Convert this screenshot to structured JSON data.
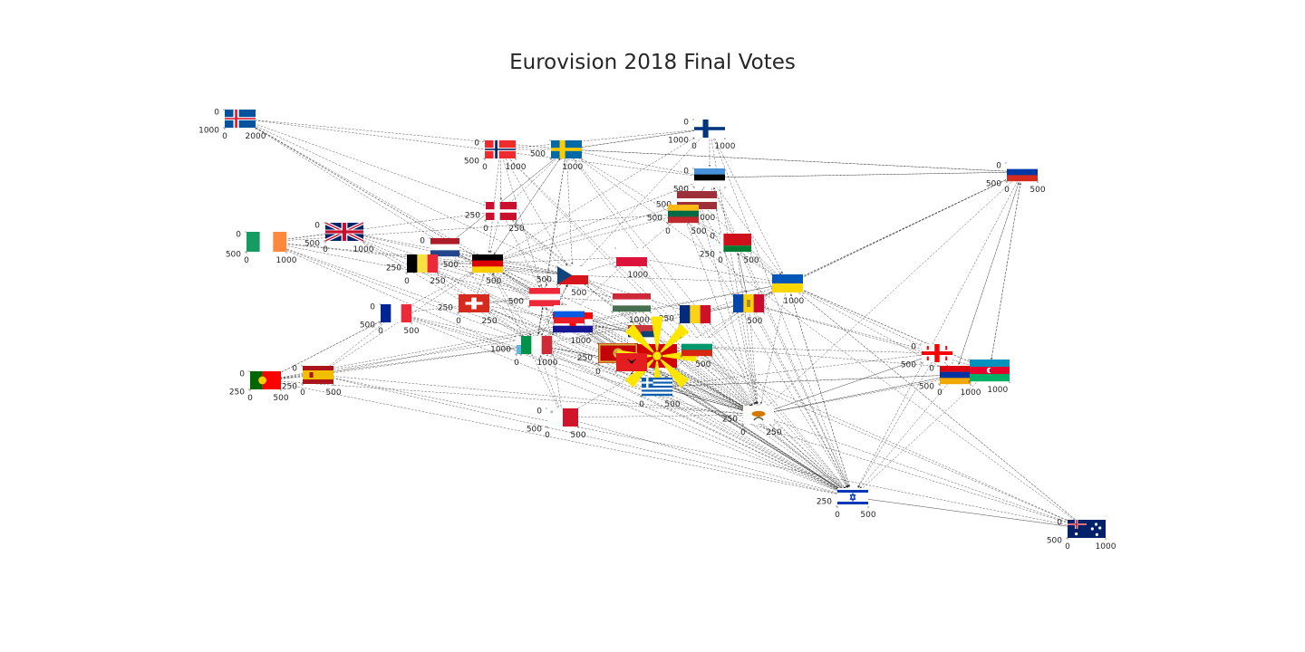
{
  "title": "Eurovision 2018 Final Votes",
  "colors": {
    "edge": "#222222",
    "tick_text": "#262626",
    "background": "#ffffff"
  },
  "nodes": [
    {
      "id": "iceland",
      "flag": "iceland",
      "ylabels": [
        "0",
        "1000"
      ],
      "xlabels": [
        "0",
        "2000"
      ]
    },
    {
      "id": "norway",
      "flag": "norway",
      "ylabels": [
        "0",
        "500"
      ],
      "xlabels": [
        "0",
        "1000"
      ]
    },
    {
      "id": "sweden",
      "flag": "sweden",
      "ylabels": [
        "500"
      ],
      "xlabels": [
        "1000"
      ]
    },
    {
      "id": "finland",
      "flag": "finland",
      "ylabels": [
        "0",
        "1000"
      ],
      "xlabels": [
        "0",
        "1000"
      ]
    },
    {
      "id": "estonia",
      "flag": "estonia",
      "ylabels": [
        "0",
        "500"
      ],
      "xlabels": []
    },
    {
      "id": "russia",
      "flag": "russia",
      "ylabels": [
        "0",
        "500"
      ],
      "xlabels": [
        "0",
        "500"
      ]
    },
    {
      "id": "denmark",
      "flag": "denmark",
      "ylabels": [
        "250"
      ],
      "xlabels": [
        "0",
        "250"
      ]
    },
    {
      "id": "latvia",
      "flag": "latvia",
      "ylabels": [
        "500"
      ],
      "xlabels": [
        "1000"
      ]
    },
    {
      "id": "lithuania",
      "flag": "lithuania",
      "ylabels": [
        "500"
      ],
      "xlabels": [
        "0",
        "500"
      ]
    },
    {
      "id": "belarus",
      "flag": "belarus",
      "ylabels": [
        "0",
        "250"
      ],
      "xlabels": [
        "0",
        "500"
      ]
    },
    {
      "id": "ireland",
      "flag": "ireland",
      "ylabels": [
        "0",
        "500"
      ],
      "xlabels": [
        "0",
        "1000"
      ]
    },
    {
      "id": "united-kingdom",
      "flag": "uk",
      "ylabels": [
        "0",
        "500"
      ],
      "xlabels": [
        "0",
        "1000"
      ]
    },
    {
      "id": "netherlands",
      "flag": "netherlands",
      "ylabels": [
        "0",
        "500"
      ],
      "xlabels": [
        "500"
      ]
    },
    {
      "id": "belgium",
      "flag": "belgium",
      "ylabels": [
        "250"
      ],
      "xlabels": [
        "0",
        "250"
      ]
    },
    {
      "id": "germany",
      "flag": "germany",
      "ylabels": [],
      "xlabels": [
        "500"
      ]
    },
    {
      "id": "czech-republic",
      "flag": "czech",
      "ylabels": [
        "500"
      ],
      "xlabels": [
        "500"
      ]
    },
    {
      "id": "poland",
      "flag": "poland",
      "ylabels": [],
      "xlabels": [
        "1000"
      ]
    },
    {
      "id": "ukraine",
      "flag": "ukraine",
      "ylabels": [],
      "xlabels": [
        "1000"
      ]
    },
    {
      "id": "switzerland",
      "flag": "switzerland",
      "ylabels": [
        "250"
      ],
      "xlabels": [
        "0",
        "250"
      ]
    },
    {
      "id": "austria",
      "flag": "austria",
      "ylabels": [
        "500"
      ],
      "xlabels": []
    },
    {
      "id": "hungary",
      "flag": "hungary",
      "ylabels": [],
      "xlabels": [
        "1000"
      ]
    },
    {
      "id": "romania",
      "flag": "romania",
      "ylabels": [
        "250"
      ],
      "xlabels": []
    },
    {
      "id": "moldova",
      "flag": "moldova",
      "ylabels": [],
      "xlabels": [
        "500"
      ]
    },
    {
      "id": "france",
      "flag": "france",
      "ylabels": [
        "0",
        "500"
      ],
      "xlabels": [
        "0",
        "500"
      ]
    },
    {
      "id": "croatia",
      "flag": "croatia",
      "ylabels": [],
      "xlabels": [
        "1000"
      ]
    },
    {
      "id": "san-marino",
      "flag": "sanmarino",
      "ylabels": [
        "1000"
      ],
      "xlabels": [
        "0",
        "1000"
      ]
    },
    {
      "id": "italy",
      "flag": "italy",
      "ylabels": [],
      "xlabels": []
    },
    {
      "id": "serbia",
      "flag": "serbia",
      "ylabels": [],
      "xlabels": []
    },
    {
      "id": "slovenia",
      "flag": "slovenia",
      "ylabels": [],
      "xlabels": []
    },
    {
      "id": "montenegro",
      "flag": "montenegro",
      "ylabels": [
        "250"
      ],
      "xlabels": [
        "0",
        "250"
      ]
    },
    {
      "id": "macedonia",
      "flag": "macedonia",
      "ylabels": [],
      "xlabels": []
    },
    {
      "id": "bulgaria",
      "flag": "bulgaria",
      "ylabels": [],
      "xlabels": [
        "500"
      ]
    },
    {
      "id": "albania",
      "flag": "albania",
      "ylabels": [],
      "xlabels": []
    },
    {
      "id": "greece",
      "flag": "greece",
      "ylabels": [],
      "xlabels": [
        "0",
        "500"
      ]
    },
    {
      "id": "portugal",
      "flag": "portugal",
      "ylabels": [
        "0",
        "250"
      ],
      "xlabels": [
        "0",
        "500"
      ]
    },
    {
      "id": "spain",
      "flag": "spain",
      "ylabels": [
        "0",
        "250"
      ],
      "xlabels": [
        "0",
        "500"
      ]
    },
    {
      "id": "malta",
      "flag": "malta",
      "ylabels": [
        "0",
        "500"
      ],
      "xlabels": [
        "0",
        "500"
      ]
    },
    {
      "id": "cyprus",
      "flag": "cyprus",
      "ylabels": [
        "250"
      ],
      "xlabels": [
        "0",
        "250"
      ]
    },
    {
      "id": "georgia",
      "flag": "georgia",
      "ylabels": [
        "0",
        "500"
      ],
      "xlabels": []
    },
    {
      "id": "armenia",
      "flag": "armenia",
      "ylabels": [
        "0",
        "500"
      ],
      "xlabels": [
        "0",
        "1000"
      ]
    },
    {
      "id": "azerbaijan",
      "flag": "azerbaijan",
      "ylabels": [],
      "xlabels": [
        "1000"
      ]
    },
    {
      "id": "israel",
      "flag": "israel",
      "ylabels": [
        "250"
      ],
      "xlabels": [
        "0",
        "500"
      ]
    },
    {
      "id": "australia",
      "flag": "australia",
      "ylabels": [
        "0",
        "500"
      ],
      "xlabels": [
        "0",
        "1000"
      ]
    }
  ],
  "edges": [
    [
      "iceland",
      "germany"
    ],
    [
      "iceland",
      "denmark"
    ],
    [
      "iceland",
      "cyprus"
    ],
    [
      "iceland",
      "israel"
    ],
    [
      "iceland",
      "austria"
    ],
    [
      "iceland",
      "sweden"
    ],
    [
      "iceland",
      "czech-republic"
    ],
    [
      "iceland",
      "estonia"
    ],
    [
      "norway",
      "denmark"
    ],
    [
      "norway",
      "germany"
    ],
    [
      "norway",
      "sweden"
    ],
    [
      "norway",
      "israel"
    ],
    [
      "norway",
      "cyprus"
    ],
    [
      "norway",
      "austria"
    ],
    [
      "norway",
      "finland"
    ],
    [
      "norway",
      "czech-republic"
    ],
    [
      "sweden",
      "denmark"
    ],
    [
      "sweden",
      "germany"
    ],
    [
      "sweden",
      "israel"
    ],
    [
      "sweden",
      "cyprus"
    ],
    [
      "sweden",
      "austria"
    ],
    [
      "sweden",
      "finland"
    ],
    [
      "sweden",
      "estonia"
    ],
    [
      "sweden",
      "czech-republic"
    ],
    [
      "sweden",
      "italy"
    ],
    [
      "sweden",
      "netherlands"
    ],
    [
      "sweden",
      "ukraine"
    ],
    [
      "sweden",
      "russia"
    ],
    [
      "finland",
      "estonia"
    ],
    [
      "finland",
      "sweden"
    ],
    [
      "finland",
      "israel"
    ],
    [
      "finland",
      "cyprus"
    ],
    [
      "finland",
      "germany"
    ],
    [
      "finland",
      "czech-republic"
    ],
    [
      "finland",
      "ukraine"
    ],
    [
      "estonia",
      "latvia"
    ],
    [
      "estonia",
      "russia"
    ],
    [
      "estonia",
      "israel"
    ],
    [
      "estonia",
      "cyprus"
    ],
    [
      "estonia",
      "ukraine"
    ],
    [
      "estonia",
      "germany"
    ],
    [
      "russia",
      "cyprus"
    ],
    [
      "russia",
      "ukraine"
    ],
    [
      "russia",
      "israel"
    ],
    [
      "russia",
      "moldova"
    ],
    [
      "russia",
      "armenia"
    ],
    [
      "russia",
      "estonia"
    ],
    [
      "russia",
      "sweden"
    ],
    [
      "russia",
      "azerbaijan"
    ],
    [
      "denmark",
      "germany"
    ],
    [
      "denmark",
      "israel"
    ],
    [
      "denmark",
      "cyprus"
    ],
    [
      "denmark",
      "austria"
    ],
    [
      "denmark",
      "czech-republic"
    ],
    [
      "latvia",
      "lithuania"
    ],
    [
      "latvia",
      "israel"
    ],
    [
      "latvia",
      "cyprus"
    ],
    [
      "latvia",
      "ukraine"
    ],
    [
      "latvia",
      "estonia"
    ],
    [
      "latvia",
      "germany"
    ],
    [
      "lithuania",
      "israel"
    ],
    [
      "lithuania",
      "cyprus"
    ],
    [
      "lithuania",
      "ukraine"
    ],
    [
      "lithuania",
      "latvia"
    ],
    [
      "lithuania",
      "germany"
    ],
    [
      "belarus",
      "ukraine"
    ],
    [
      "belarus",
      "cyprus"
    ],
    [
      "belarus",
      "israel"
    ],
    [
      "belarus",
      "moldova"
    ],
    [
      "belarus",
      "lithuania"
    ],
    [
      "belarus",
      "estonia"
    ],
    [
      "ireland",
      "israel"
    ],
    [
      "ireland",
      "cyprus"
    ],
    [
      "ireland",
      "germany"
    ],
    [
      "ireland",
      "czech-republic"
    ],
    [
      "ireland",
      "austria"
    ],
    [
      "ireland",
      "italy"
    ],
    [
      "ireland",
      "denmark"
    ],
    [
      "ireland",
      "lithuania"
    ],
    [
      "united-kingdom",
      "israel"
    ],
    [
      "united-kingdom",
      "cyprus"
    ],
    [
      "united-kingdom",
      "germany"
    ],
    [
      "united-kingdom",
      "ireland"
    ],
    [
      "united-kingdom",
      "czech-republic"
    ],
    [
      "united-kingdom",
      "austria"
    ],
    [
      "united-kingdom",
      "italy"
    ],
    [
      "netherlands",
      "germany"
    ],
    [
      "netherlands",
      "israel"
    ],
    [
      "netherlands",
      "cyprus"
    ],
    [
      "netherlands",
      "austria"
    ],
    [
      "netherlands",
      "italy"
    ],
    [
      "netherlands",
      "czech-republic"
    ],
    [
      "netherlands",
      "sweden"
    ],
    [
      "belgium",
      "germany"
    ],
    [
      "belgium",
      "israel"
    ],
    [
      "belgium",
      "cyprus"
    ],
    [
      "belgium",
      "italy"
    ],
    [
      "belgium",
      "netherlands"
    ],
    [
      "belgium",
      "czech-republic"
    ],
    [
      "belgium",
      "austria"
    ],
    [
      "germany",
      "israel"
    ],
    [
      "germany",
      "cyprus"
    ],
    [
      "germany",
      "austria"
    ],
    [
      "germany",
      "italy"
    ],
    [
      "germany",
      "czech-republic"
    ],
    [
      "germany",
      "sweden"
    ],
    [
      "czech-republic",
      "israel"
    ],
    [
      "czech-republic",
      "cyprus"
    ],
    [
      "czech-republic",
      "austria"
    ],
    [
      "czech-republic",
      "germany"
    ],
    [
      "czech-republic",
      "italy"
    ],
    [
      "czech-republic",
      "ukraine"
    ],
    [
      "poland",
      "israel"
    ],
    [
      "poland",
      "cyprus"
    ],
    [
      "poland",
      "ukraine"
    ],
    [
      "poland",
      "czech-republic"
    ],
    [
      "poland",
      "germany"
    ],
    [
      "poland",
      "italy"
    ],
    [
      "poland",
      "lithuania"
    ],
    [
      "ukraine",
      "cyprus"
    ],
    [
      "ukraine",
      "israel"
    ],
    [
      "ukraine",
      "moldova"
    ],
    [
      "ukraine",
      "azerbaijan"
    ],
    [
      "ukraine",
      "australia"
    ],
    [
      "ukraine",
      "russia"
    ],
    [
      "switzerland",
      "israel"
    ],
    [
      "switzerland",
      "cyprus"
    ],
    [
      "switzerland",
      "austria"
    ],
    [
      "switzerland",
      "italy"
    ],
    [
      "switzerland",
      "serbia"
    ],
    [
      "switzerland",
      "germany"
    ],
    [
      "switzerland",
      "albania"
    ],
    [
      "austria",
      "israel"
    ],
    [
      "austria",
      "cyprus"
    ],
    [
      "austria",
      "germany"
    ],
    [
      "austria",
      "czech-republic"
    ],
    [
      "austria",
      "serbia"
    ],
    [
      "austria",
      "italy"
    ],
    [
      "hungary",
      "israel"
    ],
    [
      "hungary",
      "cyprus"
    ],
    [
      "hungary",
      "austria"
    ],
    [
      "hungary",
      "czech-republic"
    ],
    [
      "hungary",
      "serbia"
    ],
    [
      "hungary",
      "germany"
    ],
    [
      "romania",
      "israel"
    ],
    [
      "romania",
      "cyprus"
    ],
    [
      "romania",
      "moldova"
    ],
    [
      "romania",
      "italy"
    ],
    [
      "romania",
      "ukraine"
    ],
    [
      "romania",
      "czech-republic"
    ],
    [
      "moldova",
      "cyprus"
    ],
    [
      "moldova",
      "israel"
    ],
    [
      "moldova",
      "ukraine"
    ],
    [
      "moldova",
      "romania"
    ],
    [
      "moldova",
      "russia"
    ],
    [
      "moldova",
      "belarus"
    ],
    [
      "france",
      "israel"
    ],
    [
      "france",
      "cyprus"
    ],
    [
      "france",
      "italy"
    ],
    [
      "france",
      "portugal"
    ],
    [
      "france",
      "austria"
    ],
    [
      "france",
      "germany"
    ],
    [
      "france",
      "australia"
    ],
    [
      "croatia",
      "serbia"
    ],
    [
      "croatia",
      "israel"
    ],
    [
      "croatia",
      "cyprus"
    ],
    [
      "croatia",
      "slovenia"
    ],
    [
      "croatia",
      "austria"
    ],
    [
      "croatia",
      "italy"
    ],
    [
      "croatia",
      "montenegro"
    ],
    [
      "san-marino",
      "italy"
    ],
    [
      "san-marino",
      "cyprus"
    ],
    [
      "san-marino",
      "israel"
    ],
    [
      "san-marino",
      "albania"
    ],
    [
      "san-marino",
      "czech-republic"
    ],
    [
      "italy",
      "israel"
    ],
    [
      "italy",
      "cyprus"
    ],
    [
      "italy",
      "albania"
    ],
    [
      "italy",
      "austria"
    ],
    [
      "italy",
      "czech-republic"
    ],
    [
      "serbia",
      "montenegro"
    ],
    [
      "serbia",
      "cyprus"
    ],
    [
      "serbia",
      "israel"
    ],
    [
      "serbia",
      "slovenia"
    ],
    [
      "serbia",
      "croatia"
    ],
    [
      "serbia",
      "macedonia"
    ],
    [
      "slovenia",
      "serbia"
    ],
    [
      "slovenia",
      "croatia"
    ],
    [
      "slovenia",
      "israel"
    ],
    [
      "slovenia",
      "cyprus"
    ],
    [
      "slovenia",
      "austria"
    ],
    [
      "montenegro",
      "serbia"
    ],
    [
      "montenegro",
      "cyprus"
    ],
    [
      "montenegro",
      "israel"
    ],
    [
      "montenegro",
      "albania"
    ],
    [
      "montenegro",
      "croatia"
    ],
    [
      "montenegro",
      "slovenia"
    ],
    [
      "macedonia",
      "albania"
    ],
    [
      "macedonia",
      "serbia"
    ],
    [
      "macedonia",
      "cyprus"
    ],
    [
      "macedonia",
      "israel"
    ],
    [
      "macedonia",
      "bulgaria"
    ],
    [
      "macedonia",
      "greece"
    ],
    [
      "bulgaria",
      "cyprus"
    ],
    [
      "bulgaria",
      "israel"
    ],
    [
      "bulgaria",
      "macedonia"
    ],
    [
      "bulgaria",
      "greece"
    ],
    [
      "bulgaria",
      "moldova"
    ],
    [
      "bulgaria",
      "ukraine"
    ],
    [
      "albania",
      "italy"
    ],
    [
      "albania",
      "macedonia"
    ],
    [
      "albania",
      "cyprus"
    ],
    [
      "albania",
      "israel"
    ],
    [
      "albania",
      "montenegro"
    ],
    [
      "albania",
      "greece"
    ],
    [
      "greece",
      "cyprus"
    ],
    [
      "greece",
      "israel"
    ],
    [
      "greece",
      "albania"
    ],
    [
      "greece",
      "bulgaria"
    ],
    [
      "greece",
      "armenia"
    ],
    [
      "greece",
      "georgia"
    ],
    [
      "portugal",
      "spain"
    ],
    [
      "portugal",
      "israel"
    ],
    [
      "portugal",
      "cyprus"
    ],
    [
      "portugal",
      "italy"
    ],
    [
      "portugal",
      "ukraine"
    ],
    [
      "portugal",
      "france"
    ],
    [
      "portugal",
      "moldova"
    ],
    [
      "spain",
      "israel"
    ],
    [
      "spain",
      "cyprus"
    ],
    [
      "spain",
      "italy"
    ],
    [
      "spain",
      "portugal"
    ],
    [
      "spain",
      "ukraine"
    ],
    [
      "spain",
      "germany"
    ],
    [
      "spain",
      "australia"
    ],
    [
      "spain",
      "france"
    ],
    [
      "malta",
      "israel"
    ],
    [
      "malta",
      "cyprus"
    ],
    [
      "malta",
      "italy"
    ],
    [
      "malta",
      "austria"
    ],
    [
      "malta",
      "germany"
    ],
    [
      "malta",
      "ukraine"
    ],
    [
      "cyprus",
      "greece"
    ],
    [
      "cyprus",
      "israel"
    ],
    [
      "cyprus",
      "armenia"
    ],
    [
      "cyprus",
      "bulgaria"
    ],
    [
      "cyprus",
      "georgia"
    ],
    [
      "georgia",
      "ukraine"
    ],
    [
      "georgia",
      "cyprus"
    ],
    [
      "georgia",
      "israel"
    ],
    [
      "georgia",
      "armenia"
    ],
    [
      "georgia",
      "moldova"
    ],
    [
      "georgia",
      "bulgaria"
    ],
    [
      "armenia",
      "cyprus"
    ],
    [
      "armenia",
      "georgia"
    ],
    [
      "armenia",
      "israel"
    ],
    [
      "armenia",
      "russia"
    ],
    [
      "armenia",
      "ukraine"
    ],
    [
      "armenia",
      "greece"
    ],
    [
      "azerbaijan",
      "ukraine"
    ],
    [
      "azerbaijan",
      "israel"
    ],
    [
      "azerbaijan",
      "cyprus"
    ],
    [
      "azerbaijan",
      "russia"
    ],
    [
      "azerbaijan",
      "moldova"
    ],
    [
      "azerbaijan",
      "bulgaria"
    ],
    [
      "israel",
      "cyprus"
    ],
    [
      "israel",
      "austria"
    ],
    [
      "israel",
      "czech-republic"
    ],
    [
      "israel",
      "ukraine"
    ],
    [
      "israel",
      "germany"
    ],
    [
      "israel",
      "australia"
    ],
    [
      "australia",
      "israel"
    ],
    [
      "australia",
      "cyprus"
    ],
    [
      "australia",
      "ukraine"
    ],
    [
      "australia",
      "sweden"
    ],
    [
      "australia",
      "austria"
    ],
    [
      "australia",
      "germany"
    ]
  ]
}
